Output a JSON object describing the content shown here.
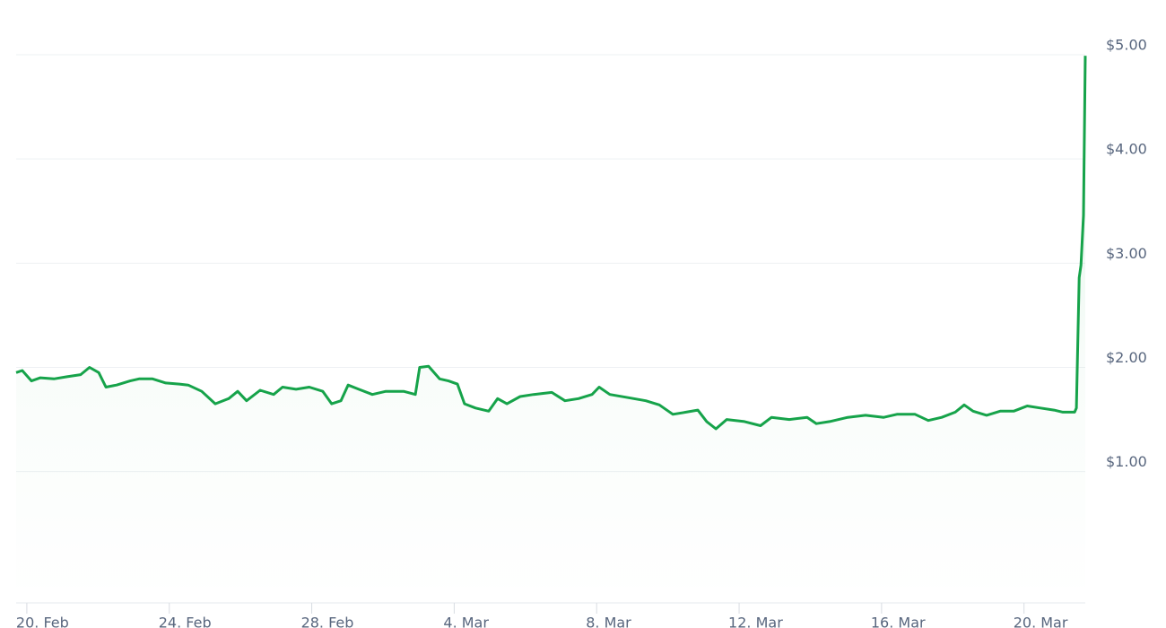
{
  "chart_data": {
    "type": "line",
    "x": [
      19.7,
      19.87,
      20.13,
      20.38,
      20.76,
      21.13,
      21.51,
      21.76,
      22.02,
      22.22,
      22.52,
      22.9,
      23.15,
      23.53,
      23.9,
      24.28,
      24.53,
      24.91,
      25.29,
      25.67,
      25.92,
      26.17,
      26.55,
      26.93,
      27.18,
      27.56,
      27.93,
      28.31,
      28.56,
      28.82,
      29.02,
      29.32,
      29.7,
      30.08,
      30.58,
      30.91,
      31.03,
      31.28,
      31.59,
      31.84,
      32.09,
      32.29,
      32.6,
      32.97,
      33.22,
      33.48,
      33.85,
      34.23,
      34.74,
      35.11,
      35.49,
      35.87,
      36.07,
      36.37,
      36.88,
      37.38,
      37.76,
      38.14,
      38.51,
      38.84,
      39.09,
      39.35,
      39.65,
      40.15,
      40.6,
      40.91,
      41.41,
      41.91,
      42.17,
      42.54,
      43.05,
      43.55,
      44.06,
      44.43,
      44.94,
      45.31,
      45.69,
      46.07,
      46.32,
      46.57,
      46.95,
      47.33,
      47.71,
      48.09,
      48.46,
      48.84,
      49.09,
      49.42,
      49.47,
      49.55,
      49.6,
      49.67,
      49.72
    ],
    "series": [
      {
        "color": "#16a34a",
        "values": [
          1.95,
          1.97,
          1.87,
          1.9,
          1.89,
          1.91,
          1.93,
          2.0,
          1.95,
          1.81,
          1.83,
          1.87,
          1.89,
          1.89,
          1.85,
          1.84,
          1.83,
          1.77,
          1.65,
          1.7,
          1.77,
          1.68,
          1.78,
          1.74,
          1.81,
          1.79,
          1.81,
          1.77,
          1.65,
          1.68,
          1.83,
          1.79,
          1.74,
          1.77,
          1.77,
          1.74,
          2.0,
          2.01,
          1.89,
          1.87,
          1.84,
          1.65,
          1.61,
          1.58,
          1.7,
          1.65,
          1.72,
          1.74,
          1.76,
          1.68,
          1.7,
          1.74,
          1.81,
          1.74,
          1.71,
          1.68,
          1.64,
          1.55,
          1.57,
          1.59,
          1.48,
          1.41,
          1.5,
          1.48,
          1.44,
          1.52,
          1.5,
          1.52,
          1.46,
          1.48,
          1.52,
          1.54,
          1.52,
          1.55,
          1.55,
          1.49,
          1.52,
          1.57,
          1.64,
          1.58,
          1.54,
          1.58,
          1.58,
          1.63,
          1.61,
          1.59,
          1.57,
          1.57,
          1.61,
          2.86,
          2.98,
          3.46,
          4.99
        ]
      }
    ],
    "xlim": [
      19.7,
      49.72
    ],
    "xticks": [
      {
        "value": 20,
        "label": "20. Feb"
      },
      {
        "value": 24,
        "label": "24. Feb"
      },
      {
        "value": 28,
        "label": "28. Feb"
      },
      {
        "value": 32,
        "label": "4. Mar"
      },
      {
        "value": 36,
        "label": "8. Mar"
      },
      {
        "value": 40,
        "label": "12. Mar"
      },
      {
        "value": 44,
        "label": "16. Mar"
      },
      {
        "value": 48,
        "label": "20. Mar"
      }
    ],
    "ylim": [
      -0.26,
      5
    ],
    "yticks": [
      {
        "value": 1,
        "label": "$1.00"
      },
      {
        "value": 2,
        "label": "$2.00"
      },
      {
        "value": 3,
        "label": "$3.00"
      },
      {
        "value": 4,
        "label": "$4.00"
      },
      {
        "value": 5,
        "label": "$5.00"
      }
    ],
    "grid": true
  }
}
